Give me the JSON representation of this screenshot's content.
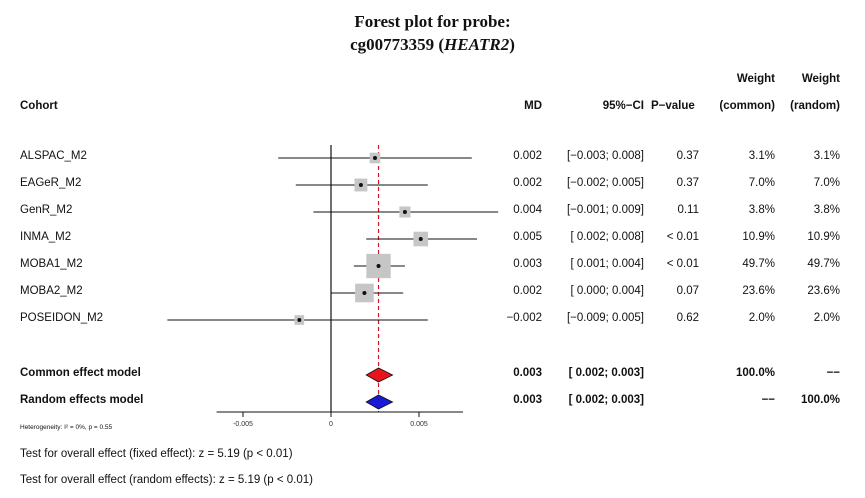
{
  "title_line1": "Forest plot for probe:",
  "title_probe": "cg00773359",
  "title_gene": "HEATR2",
  "columns": {
    "cohort": "Cohort",
    "md": "MD",
    "ci": "95%−CI",
    "pvalue": "P−value",
    "weight_label": "Weight",
    "weight_common": "(common)",
    "weight_random": "(random)"
  },
  "chart_data": {
    "type": "forest",
    "title": "Forest plot for probe: cg00773359 (HEATR2)",
    "xlim": [
      -0.0065,
      0.0075
    ],
    "xticks": [
      -0.005,
      0,
      0.005
    ],
    "xtick_labels": [
      "-0.005",
      "0",
      "0.005"
    ],
    "reference_line": 0,
    "pooled_line": 0.0027,
    "studies": [
      {
        "name": "ALSPAC_M2",
        "md": 0.0025,
        "lo": -0.003,
        "hi": 0.008,
        "md_text": "0.002",
        "ci_text": "[−0.003; 0.008]",
        "p_text": "0.37",
        "w_common": "3.1%",
        "w_random": "3.1%",
        "weight": 3.1
      },
      {
        "name": "EAGeR_M2",
        "md": 0.0017,
        "lo": -0.002,
        "hi": 0.0055,
        "md_text": "0.002",
        "ci_text": "[−0.002; 0.005]",
        "p_text": "0.37",
        "w_common": "7.0%",
        "w_random": "7.0%",
        "weight": 7.0
      },
      {
        "name": "GenR_M2",
        "md": 0.0042,
        "lo": -0.001,
        "hi": 0.0095,
        "md_text": "0.004",
        "ci_text": "[−0.001; 0.009]",
        "p_text": "0.11",
        "w_common": "3.8%",
        "w_random": "3.8%",
        "weight": 3.8
      },
      {
        "name": "INMA_M2",
        "md": 0.0051,
        "lo": 0.002,
        "hi": 0.0083,
        "md_text": "0.005",
        "ci_text": "[ 0.002; 0.008]",
        "p_text": "< 0.01",
        "w_common": "10.9%",
        "w_random": "10.9%",
        "weight": 10.9
      },
      {
        "name": "MOBA1_M2",
        "md": 0.0027,
        "lo": 0.0013,
        "hi": 0.0042,
        "md_text": "0.003",
        "ci_text": "[ 0.001; 0.004]",
        "p_text": "< 0.01",
        "w_common": "49.7%",
        "w_random": "49.7%",
        "weight": 49.7
      },
      {
        "name": "MOBA2_M2",
        "md": 0.0019,
        "lo": 0.0,
        "hi": 0.0041,
        "md_text": "0.002",
        "ci_text": "[ 0.000; 0.004]",
        "p_text": "0.07",
        "w_common": "23.6%",
        "w_random": "23.6%",
        "weight": 23.6
      },
      {
        "name": "POSEIDON_M2",
        "md": -0.0018,
        "lo": -0.0093,
        "hi": 0.0055,
        "md_text": "−0.002",
        "ci_text": "[−0.009; 0.005]",
        "p_text": "0.62",
        "w_common": "2.0%",
        "w_random": "2.0%",
        "weight": 2.0
      }
    ],
    "pooled": [
      {
        "name": "Common effect model",
        "md": 0.0027,
        "lo": 0.002,
        "hi": 0.0035,
        "md_text": "0.003",
        "ci_text": "[ 0.002; 0.003]",
        "w_common": "100.0%",
        "w_random": "−−",
        "color": "#e8141c"
      },
      {
        "name": "Random effects model",
        "md": 0.0027,
        "lo": 0.002,
        "hi": 0.0035,
        "md_text": "0.003",
        "ci_text": "[ 0.002; 0.003]",
        "w_common": "−−",
        "w_random": "100.0%",
        "color": "#1a1ad6"
      }
    ]
  },
  "heterogeneity": "Heterogeneity: I² = 0%, p = 0.55",
  "test_fixed": "Test for overall effect (fixed effect): z = 5.19 (p < 0.01)",
  "test_random": "Test for overall effect (random effects): z = 5.19 (p < 0.01)"
}
